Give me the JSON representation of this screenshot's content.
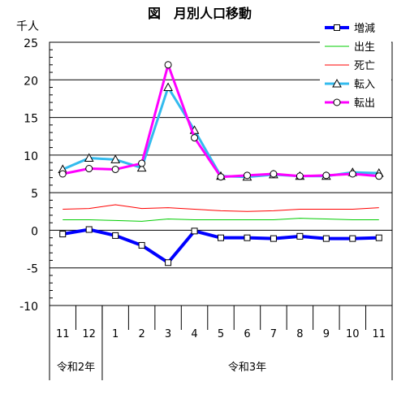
{
  "chart_data": {
    "type": "line",
    "title": "図　月別人口移動",
    "unit_label": "千人",
    "ylim": [
      -10,
      25
    ],
    "y_ticks": [
      -10,
      -5,
      0,
      5,
      10,
      15,
      20,
      25
    ],
    "grid": "horizontal",
    "legend_position": "top-right",
    "categories": [
      "11",
      "12",
      "1",
      "2",
      "3",
      "4",
      "5",
      "6",
      "7",
      "8",
      "9",
      "10",
      "11"
    ],
    "year_groups": [
      {
        "label": "令和2年",
        "span": 2
      },
      {
        "label": "令和3年",
        "span": 11
      }
    ],
    "series": [
      {
        "name": "増減",
        "color": "#0000FF",
        "marker": "square",
        "values": [
          -0.5,
          0.1,
          -0.7,
          -2.0,
          -4.3,
          -0.1,
          -1.0,
          -1.0,
          -1.1,
          -0.8,
          -1.1,
          -1.1,
          -1.0
        ]
      },
      {
        "name": "出生",
        "color": "#00CC00",
        "marker": "none",
        "values": [
          1.4,
          1.4,
          1.3,
          1.2,
          1.5,
          1.4,
          1.4,
          1.4,
          1.4,
          1.6,
          1.5,
          1.4,
          1.4
        ]
      },
      {
        "name": "死亡",
        "color": "#FF0000",
        "marker": "none",
        "values": [
          2.8,
          2.9,
          3.4,
          2.9,
          3.0,
          2.8,
          2.6,
          2.5,
          2.6,
          2.8,
          2.8,
          2.8,
          3.0
        ]
      },
      {
        "name": "転入",
        "color": "#33BBEE",
        "marker": "triangle",
        "values": [
          8.1,
          9.6,
          9.4,
          8.3,
          19.0,
          13.3,
          7.2,
          7.1,
          7.4,
          7.2,
          7.2,
          7.7,
          7.6
        ]
      },
      {
        "name": "転出",
        "color": "#FF00FF",
        "marker": "circle",
        "values": [
          7.5,
          8.2,
          8.1,
          8.9,
          22.0,
          12.3,
          7.1,
          7.3,
          7.5,
          7.2,
          7.3,
          7.5,
          7.2
        ]
      }
    ]
  }
}
